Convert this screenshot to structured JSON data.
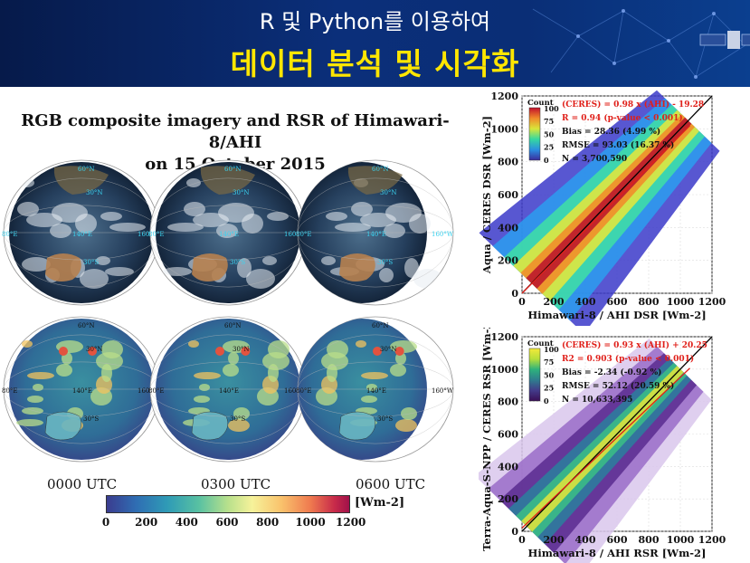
{
  "header": {
    "line1": "R 및 Python를 이용하여",
    "line2": "데이터 분석 및 시각화"
  },
  "figure": {
    "title_line1": "RGB composite imagery and RSR of Himawari-8/AHI",
    "title_line2": "on 15 October 2015",
    "times": [
      "0000 UTC",
      "0300 UTC",
      "0600 UTC"
    ],
    "colorbar": {
      "ticks": [
        "0",
        "200",
        "400",
        "600",
        "800",
        "1000",
        "1200"
      ],
      "unit": "[Wm-2]"
    },
    "globe_labels": [
      "60°N",
      "30°N",
      "0°",
      "30°S",
      "60°S",
      "80°E",
      "110°E",
      "140°E",
      "170°E",
      "160°W"
    ]
  },
  "chart_data": [
    {
      "type": "heatmap",
      "title": "",
      "xlabel": "Himawari-8 / AHI  DSR  [Wm-2]",
      "ylabel": "Aqua / CERES  DSR  [Wm-2]",
      "xlim": [
        0,
        1200
      ],
      "ylim": [
        0,
        1200
      ],
      "x_ticks": [
        0,
        200,
        400,
        600,
        800,
        1000,
        1200
      ],
      "y_ticks": [
        0,
        200,
        400,
        600,
        800,
        1000,
        1200
      ],
      "grid": true,
      "regression": {
        "slope": 0.98,
        "intercept": -19.28
      },
      "legend": {
        "title": "Count",
        "ticks": [
          100,
          75,
          50,
          25,
          0
        ],
        "colormap": "rainbow",
        "placement": "top-left"
      },
      "annotations": [
        {
          "text": "(CERES) = 0.98 x (AHI) - 19.28",
          "color": "#e0201a"
        },
        {
          "text": "R = 0.94 (p-value < 0.001)",
          "color": "#e0201a"
        },
        {
          "text": "Bias = 28.36 (4.99 %)",
          "color": "#111111"
        },
        {
          "text": "RMSE = 93.03 (16.37 %)",
          "color": "#111111"
        },
        {
          "text": "N = 3,700,590",
          "color": "#111111"
        }
      ]
    },
    {
      "type": "heatmap",
      "title": "",
      "xlabel": "Himawari-8 / AHI  RSR  [Wm-2]",
      "ylabel": "Terra-Aqua-S-NPP / CERES  RSR  [Wm-2]",
      "xlim": [
        0,
        1200
      ],
      "ylim": [
        0,
        1200
      ],
      "x_ticks": [
        0,
        200,
        400,
        600,
        800,
        1000,
        1200
      ],
      "y_ticks": [
        0,
        200,
        400,
        600,
        800,
        1000,
        1200
      ],
      "grid": true,
      "regression": {
        "slope": 0.93,
        "intercept": 20.25
      },
      "legend": {
        "title": "Count",
        "ticks": [
          100,
          75,
          50,
          25,
          0
        ],
        "colormap": "viridis",
        "placement": "top-left"
      },
      "annotations": [
        {
          "text": "(CERES) = 0.93 x (AHI) + 20.25",
          "color": "#e0201a"
        },
        {
          "text": "R2 = 0.903 (p-value < 0.001)",
          "color": "#e0201a"
        },
        {
          "text": "Bias = -2.34 (-0.92 %)",
          "color": "#111111"
        },
        {
          "text": "RMSE = 52.12 (20.59 %)",
          "color": "#111111"
        },
        {
          "text": "N = 10,633,395",
          "color": "#111111"
        }
      ]
    }
  ]
}
